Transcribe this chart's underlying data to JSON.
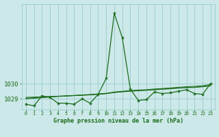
{
  "title": "Graphe pression niveau de la mer (hPa)",
  "bg_color": "#cce8e8",
  "grid_color": "#99cccc",
  "line_color": "#1a6b1a",
  "marker_color": "#1a6b1a",
  "xlim": [
    -0.5,
    23.5
  ],
  "ylim": [
    1028.3,
    1035.2
  ],
  "yticks": [
    1029,
    1030
  ],
  "xticks": [
    0,
    1,
    2,
    3,
    4,
    5,
    6,
    7,
    8,
    9,
    10,
    11,
    12,
    13,
    14,
    15,
    16,
    17,
    18,
    19,
    20,
    21,
    22,
    23
  ],
  "series": [
    [
      1028.65,
      1028.55,
      1029.2,
      1029.1,
      1028.72,
      1028.72,
      1028.65,
      1029.0,
      1028.72,
      1029.3,
      1030.35,
      1034.6,
      1033.0,
      1029.65,
      1028.9,
      1028.95,
      1029.45,
      1029.35,
      1029.4,
      1029.5,
      1029.6,
      1029.35,
      1029.3,
      1030.0
    ],
    [
      1029.1,
      1029.12,
      1029.14,
      1029.16,
      1029.18,
      1029.2,
      1029.22,
      1029.24,
      1029.26,
      1029.3,
      1029.35,
      1029.45,
      1029.5,
      1029.55,
      1029.58,
      1029.6,
      1029.65,
      1029.68,
      1029.72,
      1029.76,
      1029.8,
      1029.82,
      1029.86,
      1029.95
    ],
    [
      1029.05,
      1029.08,
      1029.11,
      1029.14,
      1029.17,
      1029.2,
      1029.23,
      1029.26,
      1029.29,
      1029.33,
      1029.37,
      1029.44,
      1029.48,
      1029.52,
      1029.55,
      1029.58,
      1029.62,
      1029.65,
      1029.69,
      1029.72,
      1029.75,
      1029.77,
      1029.82,
      1029.88
    ],
    [
      1029.0,
      1029.04,
      1029.08,
      1029.12,
      1029.16,
      1029.18,
      1029.21,
      1029.24,
      1029.27,
      1029.31,
      1029.34,
      1029.41,
      1029.46,
      1029.5,
      1029.53,
      1029.56,
      1029.59,
      1029.63,
      1029.66,
      1029.7,
      1029.73,
      1029.75,
      1029.79,
      1029.85
    ]
  ]
}
